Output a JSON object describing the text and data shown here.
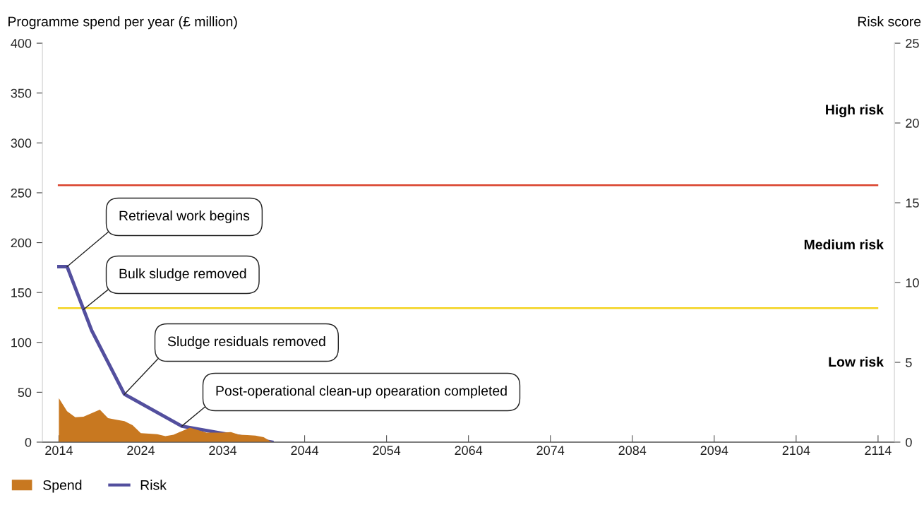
{
  "chart_data": {
    "type": "area",
    "ylabel": "Programme spend per year (£ million)",
    "y2label": "Risk score",
    "xlim": [
      2012,
      2116
    ],
    "xticks": [
      2014,
      2024,
      2034,
      2044,
      2054,
      2064,
      2074,
      2084,
      2094,
      2104,
      2114
    ],
    "ylim": [
      0,
      400
    ],
    "yticks": [
      0,
      50,
      100,
      150,
      200,
      250,
      300,
      350,
      400
    ],
    "y2lim": [
      0,
      25
    ],
    "y2ticks": [
      0,
      5,
      10,
      15,
      20,
      25
    ],
    "series": [
      {
        "name": "Spend",
        "color": "#c87820",
        "x": [
          2014,
          2015,
          2016,
          2017,
          2018,
          2019,
          2020,
          2021,
          2022,
          2023,
          2024,
          2025,
          2026,
          2027,
          2028,
          2029,
          2030,
          2031,
          2032,
          2033,
          2034,
          2035,
          2036,
          2037,
          2038,
          2039,
          2040
        ],
        "values": [
          44,
          31,
          25,
          25.5,
          29,
          32.5,
          24,
          22.5,
          21,
          17,
          9,
          8.5,
          8,
          6,
          7.5,
          11,
          14.5,
          12,
          9.5,
          9.5,
          9.5,
          10,
          7.5,
          7,
          6.5,
          5,
          0
        ]
      },
      {
        "name": "Risk",
        "type": "line",
        "axis": "y2",
        "color": "#534f9e",
        "x": [
          2014,
          2015,
          2018,
          2022,
          2029,
          2040
        ],
        "values": [
          11,
          11,
          7,
          3,
          1,
          0
        ]
      }
    ],
    "ref_lines": [
      {
        "axis": "y2",
        "value": 16.1,
        "color": "#d9412b"
      },
      {
        "axis": "y2",
        "value": 8.4,
        "color": "#f3d31f"
      }
    ],
    "annotations": [
      {
        "text": "Retrieval work begins",
        "x": 2015,
        "y": 176
      },
      {
        "text": "Bulk sludge removed",
        "x": 2017,
        "y": 133
      },
      {
        "text": "Sludge residuals removed",
        "x": 2022,
        "y": 48
      },
      {
        "text": "Post-operational clean-up opearation completed",
        "x": 2029,
        "y": 16
      },
      "High risk",
      "Medium risk",
      "Low risk"
    ],
    "grid": false,
    "legend": "bottom left"
  }
}
